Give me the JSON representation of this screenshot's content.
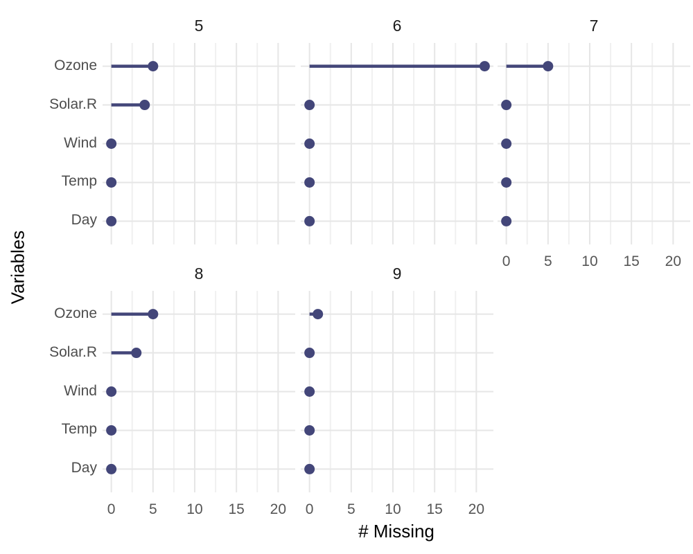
{
  "chart_data": {
    "type": "lollipop",
    "xlabel": "# Missing",
    "ylabel": "Variables",
    "categories": [
      "Ozone",
      "Solar.R",
      "Wind",
      "Temp",
      "Day"
    ],
    "x_ticks": [
      0,
      5,
      10,
      15,
      20
    ],
    "x_minor_ticks": [
      2.5,
      7.5,
      12.5,
      17.5
    ],
    "xlim": [
      -1.05,
      22.05
    ],
    "grid": true,
    "legend": "none",
    "facets": [
      {
        "label": "5",
        "values": [
          5,
          4,
          0,
          0,
          0
        ]
      },
      {
        "label": "6",
        "values": [
          21,
          0,
          0,
          0,
          0
        ]
      },
      {
        "label": "7",
        "values": [
          5,
          0,
          0,
          0,
          0
        ]
      },
      {
        "label": "8",
        "values": [
          5,
          3,
          0,
          0,
          0
        ]
      },
      {
        "label": "9",
        "values": [
          1,
          0,
          0,
          0,
          0
        ]
      }
    ],
    "colors": {
      "point": "#434679",
      "segment": "#434679",
      "grid_major": "#e6e6e6",
      "grid_minor": "#f0f0f0",
      "tick_text": "#555555",
      "category_text": "#4d4d4d",
      "strip_text": "#1a1a1a",
      "axis_title_text": "#000000",
      "background": "#ffffff"
    }
  }
}
